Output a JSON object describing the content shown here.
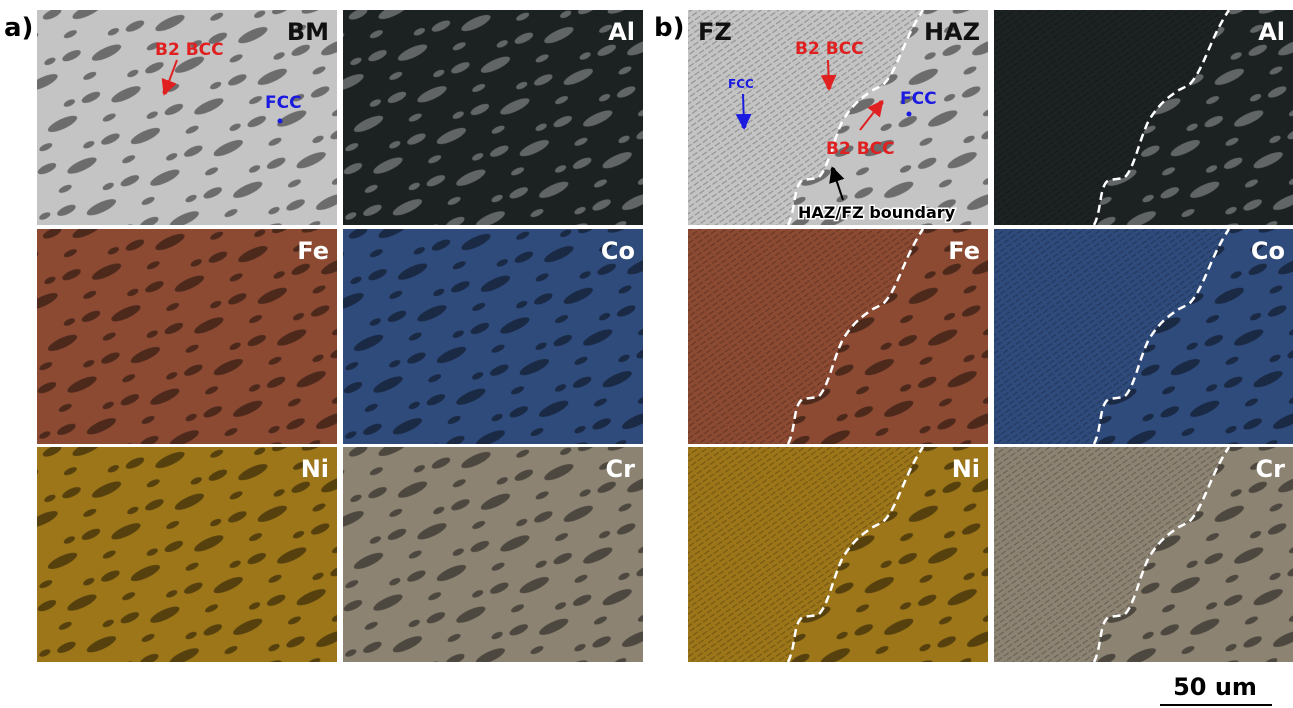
{
  "panels": [
    {
      "label": "a)",
      "tiles": [
        {
          "labels": [
            "BM"
          ]
        },
        {
          "labels": [
            "Al"
          ]
        },
        {
          "labels": [
            "Fe"
          ]
        },
        {
          "labels": [
            "Co"
          ]
        },
        {
          "labels": [
            "Ni"
          ]
        },
        {
          "labels": [
            "Cr"
          ]
        }
      ],
      "annotations": [
        {
          "text": "B2 BCC"
        },
        {
          "text": "FCC"
        }
      ]
    },
    {
      "label": "b)",
      "tiles": [
        {
          "labels": [
            "FZ",
            "HAZ"
          ]
        },
        {
          "labels": [
            "Al"
          ]
        },
        {
          "labels": [
            "Fe"
          ]
        },
        {
          "labels": [
            "Co"
          ]
        },
        {
          "labels": [
            "Ni"
          ]
        },
        {
          "labels": [
            "Cr"
          ]
        }
      ],
      "annotations": [
        {
          "text": "B2 BCC"
        },
        {
          "text": "FCC"
        },
        {
          "text": "B2 BCC"
        },
        {
          "text": "FCC"
        },
        {
          "text": "HAZ/FZ boundary"
        }
      ]
    }
  ],
  "scale_bar": "50 um"
}
